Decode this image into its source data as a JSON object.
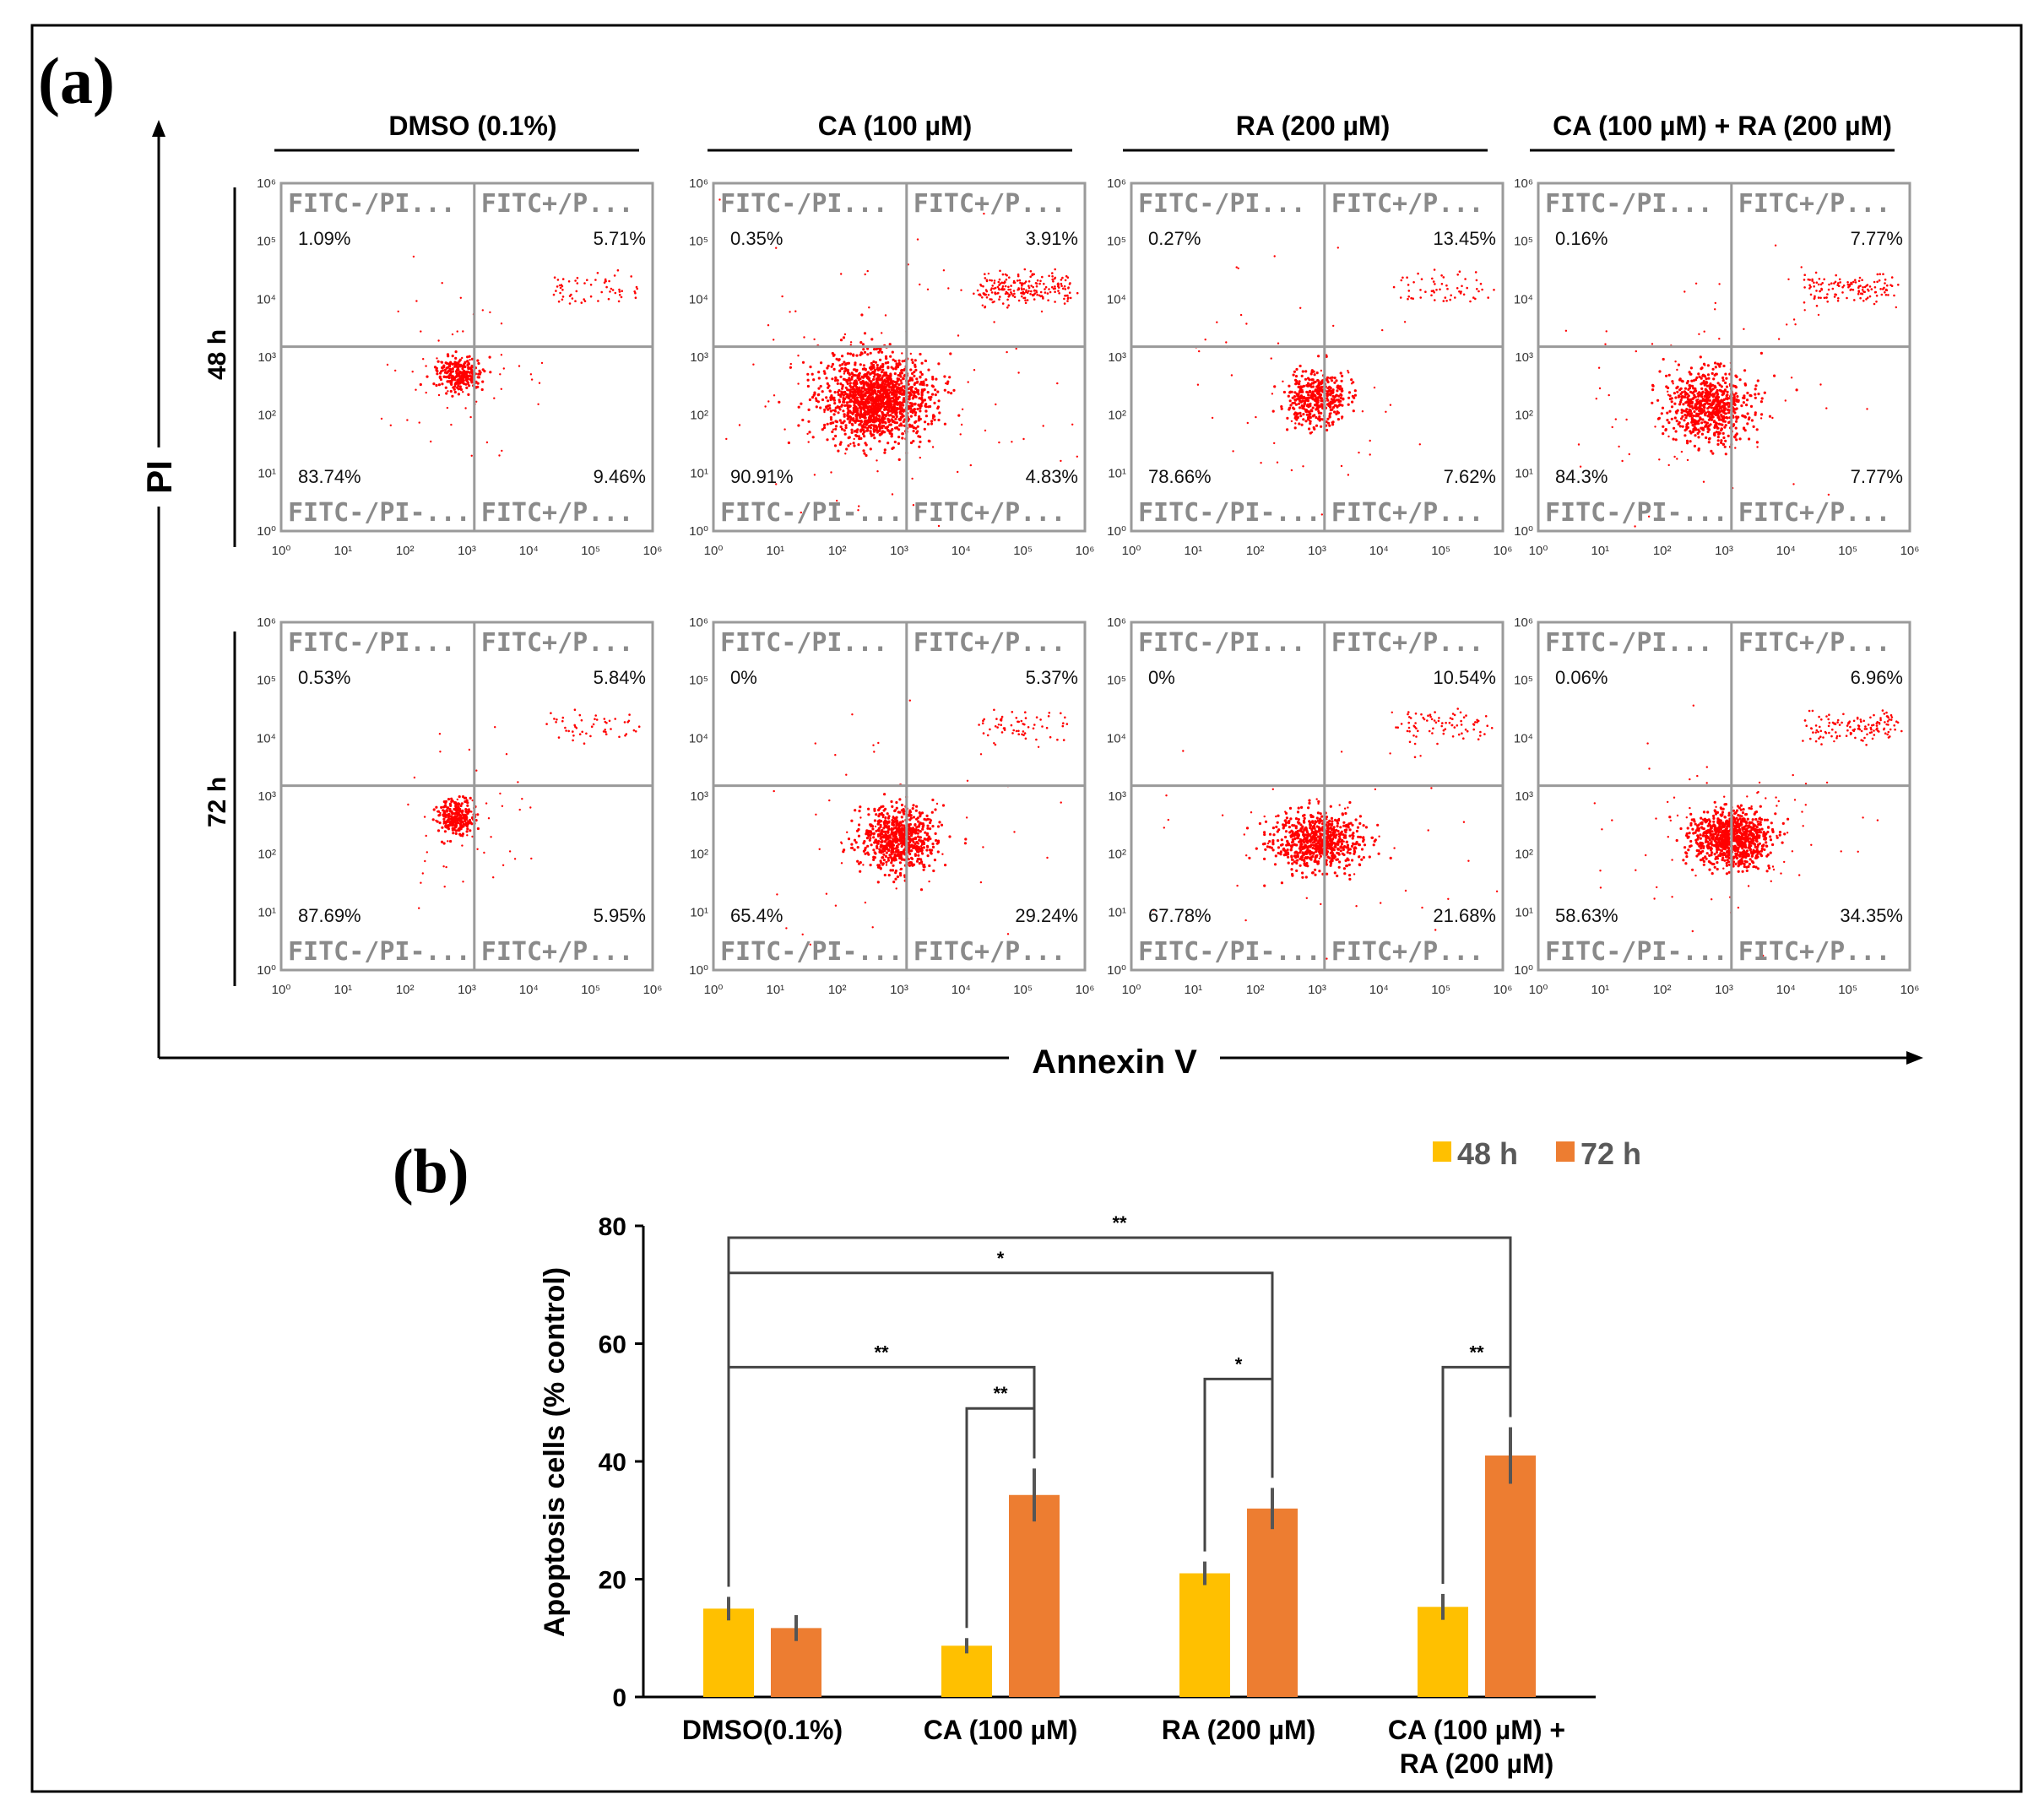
{
  "panel_a": {
    "label": "(a)",
    "y_axis_label": "PI",
    "x_axis_label": "Annexin V",
    "treatments": [
      "DMSO (0.1%)",
      "CA (100 µM)",
      "RA (200 µM)",
      "CA (100 µM) + RA (200 µM)"
    ],
    "timepoints": [
      "48 h",
      "72 h"
    ],
    "quadrant_labels": {
      "ul": "FITC-/PI...",
      "ur": "FITC+/P...",
      "ll": "FITC-/PI-...",
      "lr": "FITC+/P..."
    },
    "ticks": [
      "10⁰",
      "10¹",
      "10²",
      "10³",
      "10⁴",
      "10⁵",
      "10⁶"
    ],
    "plots": [
      {
        "row": 0,
        "col": 0,
        "ul": "1.09%",
        "ur": "5.71%",
        "ll": "83.74%",
        "lr": "9.46%"
      },
      {
        "row": 0,
        "col": 1,
        "ul": "0.35%",
        "ur": "3.91%",
        "ll": "90.91%",
        "lr": "4.83%"
      },
      {
        "row": 0,
        "col": 2,
        "ul": "0.27%",
        "ur": "13.45%",
        "ll": "78.66%",
        "lr": "7.62%"
      },
      {
        "row": 0,
        "col": 3,
        "ul": "0.16%",
        "ur": "7.77%",
        "ll": "84.3%",
        "lr": "7.77%"
      },
      {
        "row": 1,
        "col": 0,
        "ul": "0.53%",
        "ur": "5.84%",
        "ll": "87.69%",
        "lr": "5.95%"
      },
      {
        "row": 1,
        "col": 1,
        "ul": "0%",
        "ur": "5.37%",
        "ll": "65.4%",
        "lr": "29.24%"
      },
      {
        "row": 1,
        "col": 2,
        "ul": "0%",
        "ur": "10.54%",
        "ll": "67.78%",
        "lr": "21.68%"
      },
      {
        "row": 1,
        "col": 3,
        "ul": "0.06%",
        "ur": "6.96%",
        "ll": "58.63%",
        "lr": "34.35%"
      }
    ]
  },
  "chart_data": {
    "type": "bar",
    "label": "(b)",
    "title": "",
    "xlabel": "",
    "ylabel": "Apoptosis cells (% control)",
    "ylim": [
      0,
      80
    ],
    "yticks": [
      0,
      20,
      40,
      60,
      80
    ],
    "categories": [
      "DMSO(0.1%)",
      "CA (100 µM)",
      "RA (200 µM)",
      "CA (100 µM) +\nRA (200 µM)"
    ],
    "series": [
      {
        "name": "48 h",
        "color": "#FFC000",
        "values": [
          15,
          8.7,
          21,
          15.3
        ],
        "errors": [
          2,
          1.3,
          2,
          2.2
        ]
      },
      {
        "name": "72 h",
        "color": "#ED7D31",
        "values": [
          11.7,
          34.3,
          32,
          41
        ],
        "errors": [
          2.2,
          4.5,
          3.5,
          4.8
        ]
      }
    ],
    "legend_position": "top-right",
    "significance": [
      {
        "from": [
          0,
          0
        ],
        "to": [
          3,
          1
        ],
        "label": "**",
        "level": 78
      },
      {
        "from": [
          0,
          0
        ],
        "to": [
          2,
          1
        ],
        "label": "*",
        "level": 72
      },
      {
        "from": [
          0,
          0
        ],
        "to": [
          1,
          1
        ],
        "label": "**",
        "level": 56
      },
      {
        "from": [
          1,
          0
        ],
        "to": [
          1,
          1
        ],
        "label": "**",
        "level": 49
      },
      {
        "from": [
          2,
          0
        ],
        "to": [
          2,
          1
        ],
        "label": "*",
        "level": 54
      },
      {
        "from": [
          3,
          0
        ],
        "to": [
          3,
          1
        ],
        "label": "**",
        "level": 56
      }
    ]
  }
}
